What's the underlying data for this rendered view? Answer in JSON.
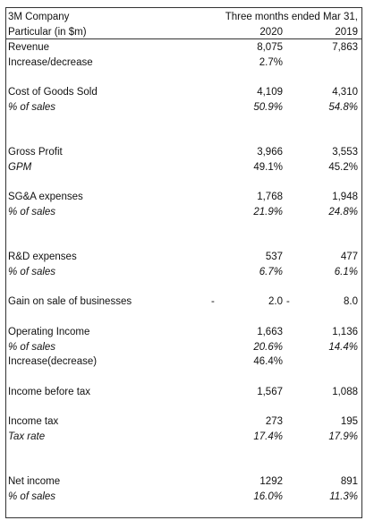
{
  "header": {
    "company": "3M Company",
    "period": "Three months ended Mar 31,",
    "particular": "Particular (in $m)",
    "year_2020": "2020",
    "year_2019": "2019"
  },
  "rows": {
    "revenue": {
      "label": "Revenue",
      "v2020": "8,075",
      "v2019": "7,863"
    },
    "increase_decrease": {
      "label": "Increase/decrease",
      "v2020": "2.7%",
      "v2019": ""
    },
    "cogs": {
      "label": "Cost of Goods Sold",
      "v2020": "4,109",
      "v2019": "4,310"
    },
    "cogs_pct": {
      "label": "% of sales",
      "v2020": "50.9%",
      "v2019": "54.8%"
    },
    "gross_profit": {
      "label": "Gross Profit",
      "v2020": "3,966",
      "v2019": "3,553"
    },
    "gpm": {
      "label": "GPM",
      "v2020": "49.1%",
      "v2019": "45.2%"
    },
    "sga": {
      "label": "SG&A expenses",
      "v2020": "1,768",
      "v2019": "1,948"
    },
    "sga_pct": {
      "label": "% of sales",
      "v2020": "21.9%",
      "v2019": "24.8%"
    },
    "rnd": {
      "label": "R&D expenses",
      "v2020": "537",
      "v2019": "477"
    },
    "rnd_pct": {
      "label": "% of sales",
      "v2020": "6.7%",
      "v2019": "6.1%"
    },
    "gain_sale": {
      "label": "Gain on sale of businesses",
      "dash1": "-",
      "v2020": "2.0",
      "dash2": "-",
      "v2019": "8.0"
    },
    "operating_income": {
      "label": "Operating Income",
      "v2020": "1,663",
      "v2019": "1,136"
    },
    "oi_pct": {
      "label": "% of sales",
      "v2020": "20.6%",
      "v2019": "14.4%"
    },
    "oi_increase": {
      "label": "Increase(decrease)",
      "v2020": "46.4%",
      "v2019": ""
    },
    "income_before_tax": {
      "label": "Income before tax",
      "v2020": "1,567",
      "v2019": "1,088"
    },
    "income_tax": {
      "label": "Income tax",
      "v2020": "273",
      "v2019": "195"
    },
    "tax_rate": {
      "label": "Tax rate",
      "v2020": "17.4%",
      "v2019": "17.9%"
    },
    "net_income": {
      "label": "Net income",
      "v2020": "1292",
      "v2019": "891"
    },
    "ni_pct": {
      "label": "% of sales",
      "v2020": "16.0%",
      "v2019": "11.3%"
    }
  }
}
